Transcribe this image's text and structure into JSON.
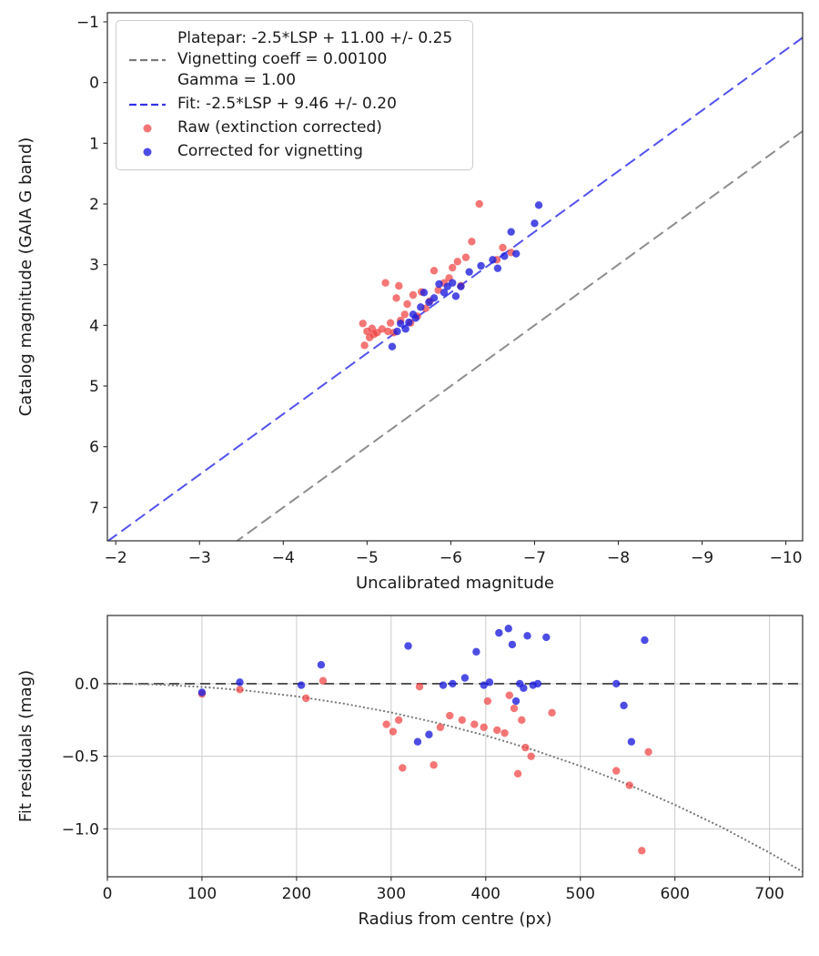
{
  "figure": {
    "background": "#ffffff",
    "text_color": "#1a1a1a",
    "grid_color": "#cccccc",
    "spine_color": "#2b2b2b"
  },
  "chart_data": [
    {
      "id": "mag-fit",
      "type": "scatter",
      "xlabel": "Uncalibrated magnitude",
      "ylabel": "Catalog magnitude (GAIA G band)",
      "xlim": [
        -1.9,
        -10.2
      ],
      "ylim": [
        -1.15,
        7.55
      ],
      "x_axis_inverted": true,
      "y_axis_inverted": true,
      "grid": false,
      "x_tick_vals": [
        -2,
        -3,
        -4,
        -5,
        -6,
        -7,
        -8,
        -9,
        -10
      ],
      "x_tick_labels": [
        "−2",
        "−3",
        "−4",
        "−5",
        "−6",
        "−7",
        "−8",
        "−9",
        "−10"
      ],
      "y_tick_vals": [
        -1,
        0,
        1,
        2,
        3,
        4,
        5,
        6,
        7
      ],
      "y_tick_labels": [
        "−1",
        "0",
        "1",
        "2",
        "3",
        "4",
        "5",
        "6",
        "7"
      ],
      "lines": [
        {
          "name": "platepar-line",
          "slope": 1,
          "intercept": 11.0,
          "color": "#7a7a7a",
          "dash": "13 6",
          "width": 2
        },
        {
          "name": "fit-line",
          "slope": 1,
          "intercept": 9.46,
          "color": "#3434e8",
          "dash": "13 6",
          "width": 2
        }
      ],
      "series": [
        {
          "name": "raw",
          "label": "Raw (extinction corrected)",
          "color": "#f03c3c",
          "opacity": 0.7,
          "points": [
            [
              -4.95,
              3.97
            ],
            [
              -4.97,
              4.33
            ],
            [
              -5.0,
              4.1
            ],
            [
              -5.03,
              4.2
            ],
            [
              -5.06,
              4.05
            ],
            [
              -5.08,
              4.15
            ],
            [
              -5.12,
              4.12
            ],
            [
              -5.18,
              4.06
            ],
            [
              -5.22,
              3.3
            ],
            [
              -5.25,
              4.1
            ],
            [
              -5.28,
              3.96
            ],
            [
              -5.32,
              4.12
            ],
            [
              -5.35,
              3.55
            ],
            [
              -5.38,
              3.35
            ],
            [
              -5.4,
              3.92
            ],
            [
              -5.45,
              3.82
            ],
            [
              -5.48,
              3.65
            ],
            [
              -5.52,
              3.96
            ],
            [
              -5.55,
              3.5
            ],
            [
              -5.6,
              3.85
            ],
            [
              -5.65,
              3.45
            ],
            [
              -5.7,
              3.72
            ],
            [
              -5.75,
              3.6
            ],
            [
              -5.8,
              3.1
            ],
            [
              -5.85,
              3.42
            ],
            [
              -5.92,
              3.3
            ],
            [
              -5.98,
              3.22
            ],
            [
              -6.02,
              3.05
            ],
            [
              -6.08,
              2.95
            ],
            [
              -6.12,
              3.35
            ],
            [
              -6.18,
              2.88
            ],
            [
              -6.25,
              2.62
            ],
            [
              -6.34,
              2.0
            ],
            [
              -6.55,
              2.92
            ],
            [
              -6.62,
              2.72
            ],
            [
              -6.72,
              2.8
            ]
          ]
        },
        {
          "name": "vignetting-corrected",
          "label": "Corrected for vignetting",
          "color": "#2121dd",
          "opacity": 0.8,
          "points": [
            [
              -5.3,
              4.35
            ],
            [
              -5.36,
              4.1
            ],
            [
              -5.4,
              3.97
            ],
            [
              -5.46,
              4.06
            ],
            [
              -5.5,
              3.95
            ],
            [
              -5.55,
              3.82
            ],
            [
              -5.58,
              3.88
            ],
            [
              -5.64,
              3.7
            ],
            [
              -5.68,
              3.46
            ],
            [
              -5.74,
              3.62
            ],
            [
              -5.8,
              3.55
            ],
            [
              -5.86,
              3.32
            ],
            [
              -5.92,
              3.46
            ],
            [
              -5.96,
              3.36
            ],
            [
              -6.02,
              3.3
            ],
            [
              -6.06,
              3.52
            ],
            [
              -6.12,
              3.36
            ],
            [
              -6.22,
              3.12
            ],
            [
              -6.36,
              3.02
            ],
            [
              -6.5,
              2.92
            ],
            [
              -6.56,
              3.06
            ],
            [
              -6.64,
              2.86
            ],
            [
              -6.72,
              2.46
            ],
            [
              -6.78,
              2.82
            ],
            [
              -7.0,
              2.32
            ],
            [
              -7.05,
              2.02
            ]
          ]
        }
      ],
      "legend": {
        "platepar_line1": "Platepar: -2.5*LSP + 11.00 +/- 0.25",
        "platepar_line2": "Vignetting coeff = 0.00100",
        "platepar_line3": "Gamma = 1.00",
        "fit_label": "Fit: -2.5*LSP + 9.46 +/- 0.20",
        "raw_label": "Raw (extinction corrected)",
        "corrected_label": "Corrected for vignetting"
      }
    },
    {
      "id": "residuals",
      "type": "scatter",
      "xlabel": "Radius from centre (px)",
      "ylabel": "Fit residuals (mag)",
      "xlim": [
        0,
        735
      ],
      "ylim": [
        0.47,
        -1.33
      ],
      "grid": true,
      "x_tick_vals": [
        0,
        100,
        200,
        300,
        400,
        500,
        600,
        700
      ],
      "x_tick_labels": [
        "0",
        "100",
        "200",
        "300",
        "400",
        "500",
        "600",
        "700"
      ],
      "y_tick_vals": [
        0.0,
        -0.5,
        -1.0
      ],
      "y_tick_labels": [
        "0.0",
        "−0.5",
        "−1.0"
      ],
      "hlines": [
        {
          "name": "zero-line",
          "y": 0,
          "color": "#4d4d4d",
          "dash": "11 6",
          "width": 1.8
        }
      ],
      "curve": {
        "name": "vignetting-model-curve",
        "color": "#7a7a7a",
        "width": 2.2,
        "dash": "0.1 4.4",
        "points": [
          [
            0,
            0
          ],
          [
            50,
            -0.005
          ],
          [
            100,
            -0.022
          ],
          [
            150,
            -0.049
          ],
          [
            200,
            -0.087
          ],
          [
            250,
            -0.137
          ],
          [
            300,
            -0.198
          ],
          [
            350,
            -0.272
          ],
          [
            400,
            -0.357
          ],
          [
            450,
            -0.455
          ],
          [
            500,
            -0.567
          ],
          [
            550,
            -0.693
          ],
          [
            600,
            -0.834
          ],
          [
            650,
            -0.99
          ],
          [
            700,
            -1.164
          ],
          [
            735,
            -1.295
          ]
        ]
      },
      "series": [
        {
          "name": "raw-residuals",
          "color": "#f03c3c",
          "opacity": 0.7,
          "points": [
            [
              100,
              -0.07
            ],
            [
              140,
              -0.04
            ],
            [
              210,
              -0.1
            ],
            [
              228,
              0.02
            ],
            [
              295,
              -0.28
            ],
            [
              302,
              -0.33
            ],
            [
              308,
              -0.25
            ],
            [
              312,
              -0.58
            ],
            [
              330,
              -0.02
            ],
            [
              345,
              -0.56
            ],
            [
              352,
              -0.3
            ],
            [
              362,
              -0.22
            ],
            [
              375,
              -0.25
            ],
            [
              388,
              -0.28
            ],
            [
              398,
              -0.3
            ],
            [
              402,
              -0.12
            ],
            [
              412,
              -0.32
            ],
            [
              420,
              -0.34
            ],
            [
              425,
              -0.08
            ],
            [
              430,
              -0.17
            ],
            [
              434,
              -0.62
            ],
            [
              438,
              -0.25
            ],
            [
              442,
              -0.44
            ],
            [
              448,
              -0.5
            ],
            [
              470,
              -0.2
            ],
            [
              538,
              -0.6
            ],
            [
              552,
              -0.7
            ],
            [
              565,
              -1.15
            ],
            [
              572,
              -0.47
            ]
          ]
        },
        {
          "name": "corrected-residuals",
          "color": "#2121dd",
          "opacity": 0.8,
          "points": [
            [
              100,
              -0.06
            ],
            [
              140,
              0.01
            ],
            [
              205,
              -0.01
            ],
            [
              226,
              0.13
            ],
            [
              318,
              0.26
            ],
            [
              328,
              -0.4
            ],
            [
              340,
              -0.35
            ],
            [
              355,
              -0.01
            ],
            [
              365,
              0.0
            ],
            [
              378,
              0.04
            ],
            [
              390,
              0.22
            ],
            [
              398,
              -0.01
            ],
            [
              404,
              0.01
            ],
            [
              414,
              0.35
            ],
            [
              424,
              0.38
            ],
            [
              428,
              0.27
            ],
            [
              432,
              -0.12
            ],
            [
              436,
              0.0
            ],
            [
              440,
              -0.03
            ],
            [
              444,
              0.33
            ],
            [
              450,
              -0.01
            ],
            [
              455,
              0.0
            ],
            [
              464,
              0.32
            ],
            [
              538,
              0.0
            ],
            [
              546,
              -0.15
            ],
            [
              554,
              -0.4
            ],
            [
              568,
              0.3
            ]
          ]
        }
      ]
    }
  ]
}
